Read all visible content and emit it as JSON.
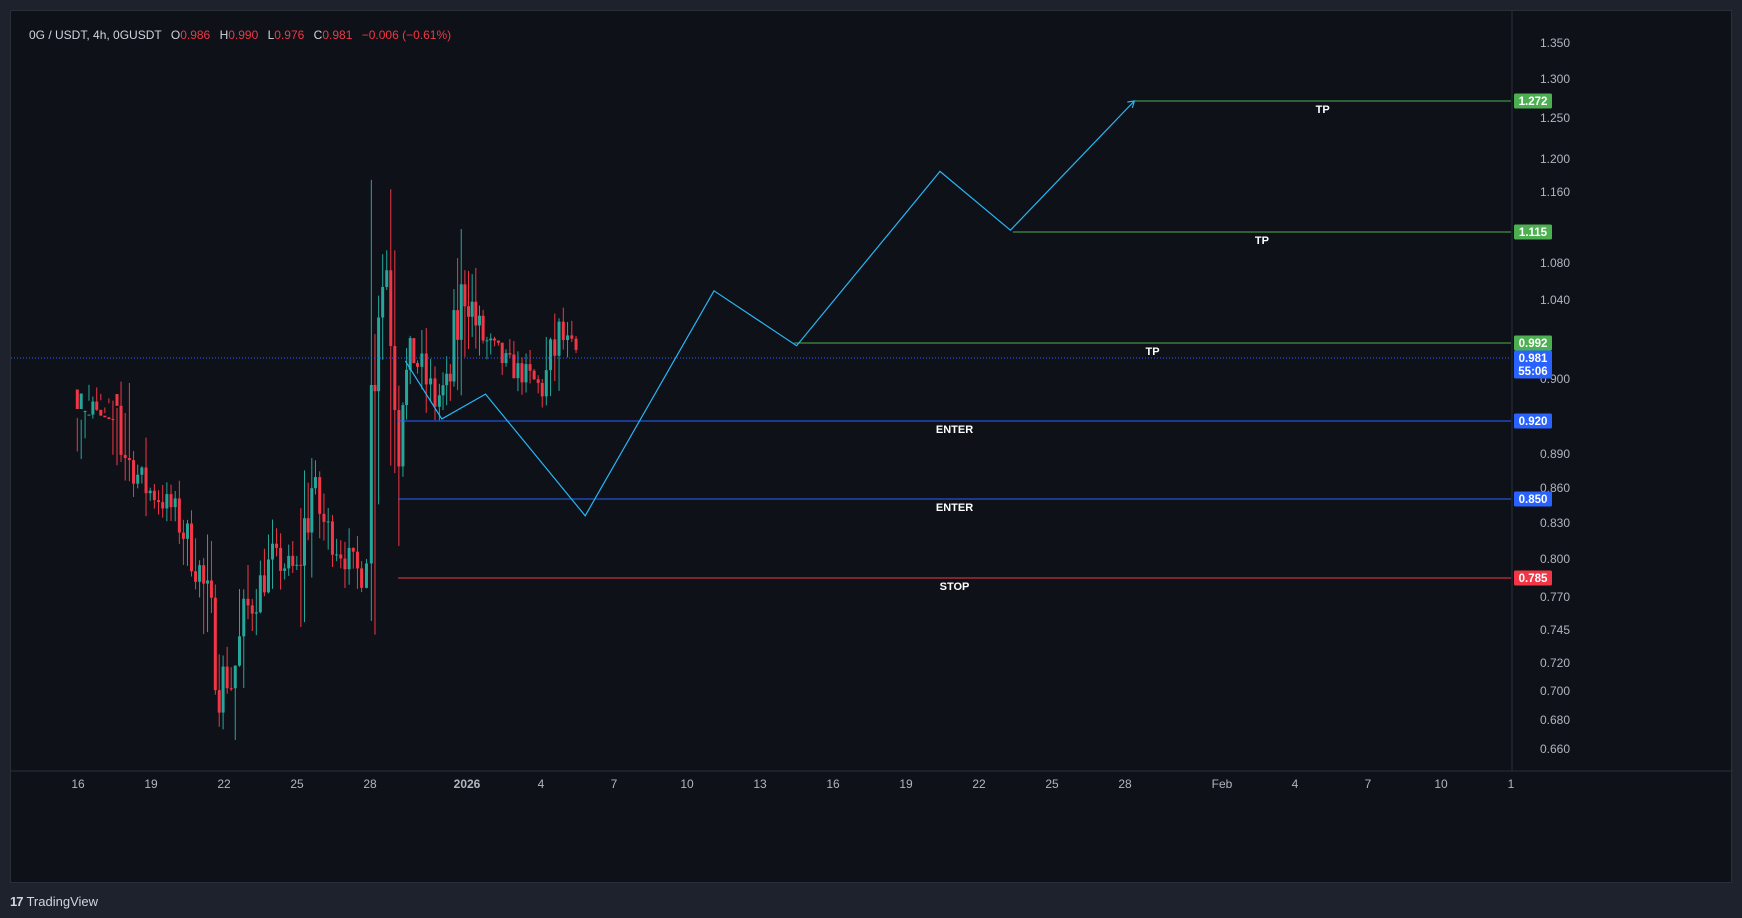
{
  "header": {
    "symbol": "0G / USDT, 4h, 0GUSDT",
    "open_label": "O",
    "open": "0.986",
    "high_label": "H",
    "high": "0.990",
    "low_label": "L",
    "low": "0.976",
    "close_label": "C",
    "close": "0.981",
    "change": "−0.006 (−0.61%)"
  },
  "footer": {
    "brand": "TradingView",
    "logo_glyph": "17"
  },
  "colors": {
    "up": "#26a69a",
    "down": "#f23645",
    "projection": "#29b6f6",
    "tp": "#4caf50",
    "enter": "#2962ff",
    "stop": "#f23645",
    "current": "#2962ff"
  },
  "chart_data": {
    "type": "candlestick",
    "y_ticks": [
      "1.350",
      "1.300",
      "1.250",
      "1.200",
      "1.160",
      "1.080",
      "1.040",
      "0.900",
      "0.890",
      "0.860",
      "0.830",
      "0.800",
      "0.770",
      "0.745",
      "0.720",
      "0.700",
      "0.680",
      "0.660"
    ],
    "x_ticks": [
      "16",
      "19",
      "22",
      "25",
      "28",
      "2026",
      "4",
      "7",
      "10",
      "13",
      "16",
      "19",
      "22",
      "25",
      "28",
      "Feb",
      "4",
      "7",
      "10",
      "1"
    ],
    "current_price": {
      "value": "0.981",
      "countdown": "55:06"
    },
    "levels": [
      {
        "label": "TP",
        "price": 1.272,
        "price_text": "1.272",
        "kind": "tp",
        "x_start_day": 34.5
      },
      {
        "label": "TP",
        "price": 1.115,
        "price_text": "1.115",
        "kind": "tp",
        "x_start_day": 29.5
      },
      {
        "label": "TP",
        "price": 0.992,
        "price_text": "0.992",
        "kind": "tp",
        "x_start_day": 20.5
      },
      {
        "label": "ENTER",
        "price": 0.92,
        "price_text": "0.920",
        "kind": "enter",
        "x_start_day": 4.2
      },
      {
        "label": "ENTER",
        "price": 0.85,
        "price_text": "0.850",
        "kind": "enter",
        "x_start_day": 4.2
      },
      {
        "label": "STOP",
        "price": 0.785,
        "price_text": "0.785",
        "kind": "stop",
        "x_start_day": 4.2
      }
    ],
    "projection_path": [
      {
        "day": 4.5,
        "price": 0.978
      },
      {
        "day": 6.0,
        "price": 0.922
      },
      {
        "day": 7.8,
        "price": 0.946
      },
      {
        "day": 11.9,
        "price": 0.836
      },
      {
        "day": 17.2,
        "price": 1.05
      },
      {
        "day": 20.6,
        "price": 0.99
      },
      {
        "day": 26.5,
        "price": 1.185
      },
      {
        "day": 29.4,
        "price": 1.117
      },
      {
        "day": 34.5,
        "price": 1.272
      }
    ],
    "candle_anchors": [
      {
        "day": -9.0,
        "price": 0.905
      },
      {
        "day": -8.2,
        "price": 0.93
      },
      {
        "day": -7.2,
        "price": 0.9
      },
      {
        "day": -6.0,
        "price": 0.86
      },
      {
        "day": -4.8,
        "price": 0.84
      },
      {
        "day": -3.8,
        "price": 0.79
      },
      {
        "day": -3.0,
        "price": 0.715
      },
      {
        "day": -2.5,
        "price": 0.705
      },
      {
        "day": -1.8,
        "price": 0.76
      },
      {
        "day": -0.8,
        "price": 0.8
      },
      {
        "day": 0.2,
        "price": 0.79
      },
      {
        "day": 0.8,
        "price": 0.86
      },
      {
        "day": 1.5,
        "price": 0.82
      },
      {
        "day": 2.7,
        "price": 0.79
      },
      {
        "day": 3.1,
        "price": 0.82
      },
      {
        "day": 3.4,
        "price": 1.02
      },
      {
        "day": 3.9,
        "price": 1.08
      },
      {
        "day": 4.4,
        "price": 0.94
      },
      {
        "day": 5.0,
        "price": 0.985
      },
      {
        "day": 5.9,
        "price": 0.94
      },
      {
        "day": 6.5,
        "price": 0.96
      },
      {
        "day": 7.1,
        "price": 1.06
      },
      {
        "day": 7.7,
        "price": 1.0
      },
      {
        "day": 8.8,
        "price": 0.975
      },
      {
        "day": 9.8,
        "price": 0.962
      },
      {
        "day": 10.3,
        "price": 0.95
      },
      {
        "day": 11.0,
        "price": 1.0
      },
      {
        "day": 11.7,
        "price": 0.981
      }
    ]
  }
}
